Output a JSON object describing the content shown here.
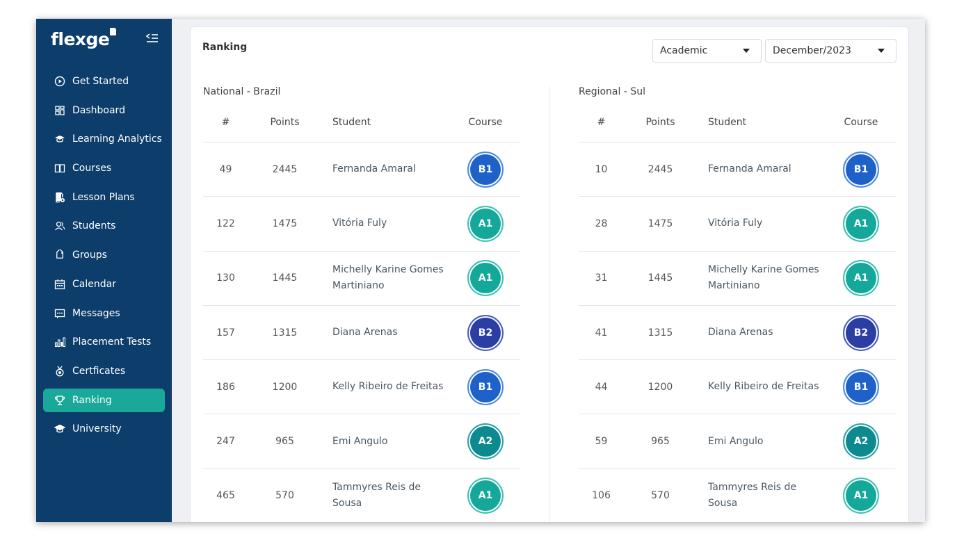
{
  "app": {
    "logo": "flexge"
  },
  "sidebar": {
    "items": [
      {
        "label": "Get Started",
        "icon": "play-circle-icon",
        "active": false
      },
      {
        "label": "Dashboard",
        "icon": "dashboard-grid-icon",
        "active": false
      },
      {
        "label": "Learning Analytics",
        "icon": "graduation-cap-icon",
        "active": false
      },
      {
        "label": "Courses",
        "icon": "book-icon",
        "active": false
      },
      {
        "label": "Lesson Plans",
        "icon": "lesson-plan-icon",
        "active": false
      },
      {
        "label": "Students",
        "icon": "users-icon",
        "active": false
      },
      {
        "label": "Groups",
        "icon": "tag-icon",
        "active": false
      },
      {
        "label": "Calendar",
        "icon": "calendar-icon",
        "active": false
      },
      {
        "label": "Messages",
        "icon": "message-icon",
        "active": false
      },
      {
        "label": "Placement Tests",
        "icon": "bar-chart-icon",
        "active": false
      },
      {
        "label": "Certficates",
        "icon": "medal-icon",
        "active": false
      },
      {
        "label": "Ranking",
        "icon": "trophy-icon",
        "active": true
      },
      {
        "label": "University",
        "icon": "university-cap-icon",
        "active": false
      }
    ]
  },
  "main": {
    "title": "Ranking",
    "filters": {
      "type": "Academic",
      "period": "December/2023"
    },
    "columns": {
      "rank": "#",
      "points": "Points",
      "student": "Student",
      "course": "Course"
    },
    "national": {
      "title": "National - Brazil",
      "rows": [
        {
          "rank": "49",
          "points": "2445",
          "student": "Fernanda Amaral",
          "course": "B1"
        },
        {
          "rank": "122",
          "points": "1475",
          "student": "Vitória Fuly",
          "course": "A1"
        },
        {
          "rank": "130",
          "points": "1445",
          "student": "Michelly Karine Gomes Martiniano",
          "course": "A1"
        },
        {
          "rank": "157",
          "points": "1315",
          "student": "Diana Arenas",
          "course": "B2"
        },
        {
          "rank": "186",
          "points": "1200",
          "student": "Kelly Ribeiro de Freitas",
          "course": "B1"
        },
        {
          "rank": "247",
          "points": "965",
          "student": "Emi Angulo",
          "course": "A2"
        },
        {
          "rank": "465",
          "points": "570",
          "student": "Tammyres Reis de Sousa",
          "course": "A1"
        }
      ]
    },
    "regional": {
      "title": "Regional - Sul",
      "rows": [
        {
          "rank": "10",
          "points": "2445",
          "student": "Fernanda Amaral",
          "course": "B1"
        },
        {
          "rank": "28",
          "points": "1475",
          "student": "Vitória Fuly",
          "course": "A1"
        },
        {
          "rank": "31",
          "points": "1445",
          "student": "Michelly Karine Gomes Martiniano",
          "course": "A1"
        },
        {
          "rank": "41",
          "points": "1315",
          "student": "Diana Arenas",
          "course": "B2"
        },
        {
          "rank": "44",
          "points": "1200",
          "student": "Kelly Ribeiro de Freitas",
          "course": "B1"
        },
        {
          "rank": "59",
          "points": "965",
          "student": "Emi Angulo",
          "course": "A2"
        },
        {
          "rank": "106",
          "points": "570",
          "student": "Tammyres Reis de Sousa",
          "course": "A1"
        }
      ]
    }
  },
  "colors": {
    "sidebar_bg": "#0c3d6b",
    "active_bg": "#1aa89a",
    "course": {
      "A1": "#13a899",
      "A2": "#0d8a8f",
      "B1": "#1e62c9",
      "B2": "#2a3ea4"
    },
    "course_ring": {
      "A1": "#3cc3b4",
      "A2": "#2aa4a8",
      "B1": "#4a8de3",
      "B2": "#4b5fc4"
    }
  }
}
